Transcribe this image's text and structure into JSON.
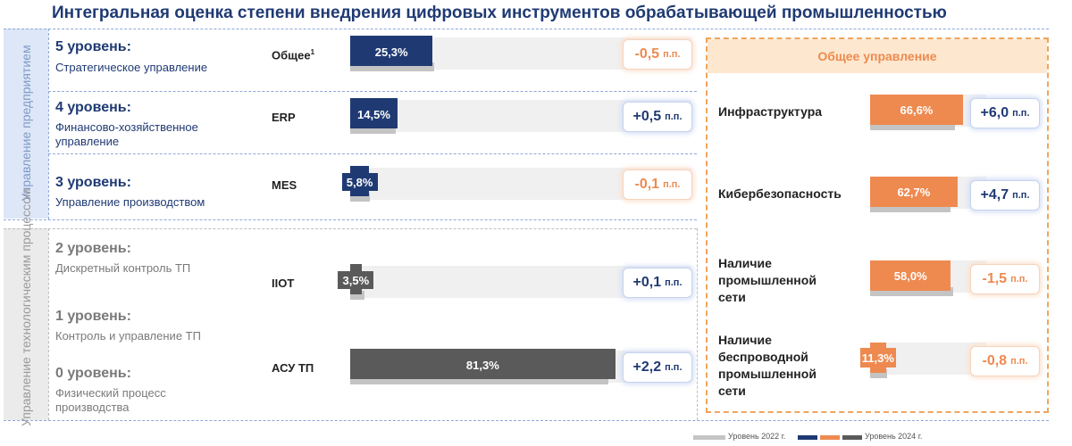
{
  "title": "Интегральная оценка степени внедрения цифровых инструментов обрабатывающей промышленностью",
  "sections": {
    "mgmt_label": "Управление предприятием",
    "tech_label": "Управление технологическим процессом"
  },
  "levels": [
    {
      "title": "5 уровень:",
      "desc": "Стратегическое управление"
    },
    {
      "title": "4 уровень:",
      "desc": "Финансово-хозяйственное управление"
    },
    {
      "title": "3 уровень:",
      "desc": "Управление производством"
    },
    {
      "title": "2 уровень:",
      "desc": "Дискретный контроль ТП"
    },
    {
      "title": "1 уровень:",
      "desc": "Контроль и управление ТП"
    },
    {
      "title": "0 уровень:",
      "desc": "Физический процесс производства"
    }
  ],
  "general_management": {
    "header": "Общее управление"
  },
  "colors": {
    "navy": "#1f3a73",
    "orange": "#ee8a50",
    "gray_dark": "#5a5a5a",
    "gray_light": "#c4c4c4",
    "track": "#f0f0f0"
  },
  "legend": {
    "label_2022": "Уровень 2022 г.",
    "label_2024": "Уровень 2024 г."
  },
  "chart_data": [
    {
      "type": "bar",
      "categories": [
        "Общее",
        "ERP",
        "MES",
        "IIOT",
        "АСУ ТП"
      ],
      "category_superscripts": [
        "1",
        "",
        "",
        "",
        ""
      ],
      "series": [
        {
          "name": "Уровень 2024 г.",
          "values": [
            25.3,
            14.5,
            5.8,
            3.5,
            81.3
          ],
          "labels": [
            "25,3%",
            "14,5%",
            "5,8%",
            "3,5%",
            "81,3%"
          ]
        },
        {
          "name": "Уровень 2022 г.",
          "values": [
            25.8,
            14.0,
            5.9,
            3.4,
            79.1
          ]
        }
      ],
      "deltas": [
        {
          "value": "-0,5",
          "unit": "п.п.",
          "sign": "neg"
        },
        {
          "value": "+0,5",
          "unit": "п.п.",
          "sign": "pos"
        },
        {
          "value": "-0,1",
          "unit": "п.п.",
          "sign": "neg"
        },
        {
          "value": "+0,1",
          "unit": "п.п.",
          "sign": "pos"
        },
        {
          "value": "+2,2",
          "unit": "п.п.",
          "sign": "pos"
        }
      ],
      "ylim": [
        0,
        100
      ]
    },
    {
      "type": "bar",
      "categories": [
        "Инфраструктура",
        "Кибербезопасность",
        "Наличие промышленной сети",
        "Наличие беспроводной промышленной сети"
      ],
      "series": [
        {
          "name": "Уровень 2024 г.",
          "values": [
            66.6,
            62.7,
            58.0,
            11.3
          ],
          "labels": [
            "66,6%",
            "62,7%",
            "58,0%",
            "11,3%"
          ]
        },
        {
          "name": "Уровень 2022 г.",
          "values": [
            60.6,
            58.0,
            59.5,
            12.1
          ]
        }
      ],
      "deltas": [
        {
          "value": "+6,0",
          "unit": "п.п.",
          "sign": "pos"
        },
        {
          "value": "+4,7",
          "unit": "п.п.",
          "sign": "pos"
        },
        {
          "value": "-1,5",
          "unit": "п.п.",
          "sign": "neg"
        },
        {
          "value": "-0,8",
          "unit": "п.п.",
          "sign": "neg"
        }
      ],
      "ylim": [
        0,
        100
      ]
    }
  ]
}
